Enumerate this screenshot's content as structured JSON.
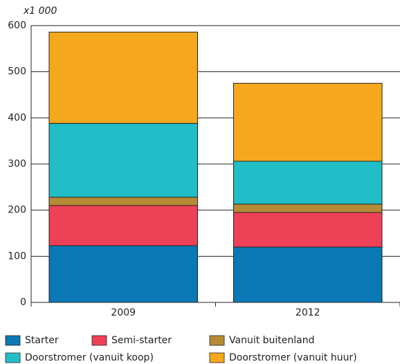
{
  "chart_data": {
    "type": "stacked_bar",
    "y_label": "x1 000",
    "categories": [
      "2009",
      "2012"
    ],
    "series": [
      {
        "name": "Starter",
        "color": "#0a78b5",
        "values": [
          123,
          120
        ]
      },
      {
        "name": "Semi-starter",
        "color": "#ee4157",
        "values": [
          87,
          75
        ]
      },
      {
        "name": "Vanuit buitenland",
        "color": "#b68b36",
        "values": [
          18,
          18
        ]
      },
      {
        "name": "Doorstromer (vanuit koop)",
        "color": "#22bec8",
        "values": [
          160,
          93
        ]
      },
      {
        "name": "Doorstromer (vanuit huur)",
        "color": "#f6a81d",
        "values": [
          198,
          169
        ]
      }
    ],
    "ylim": [
      0,
      600
    ],
    "yticks": [
      0,
      100,
      200,
      300,
      400,
      500,
      600
    ],
    "grid": true
  }
}
